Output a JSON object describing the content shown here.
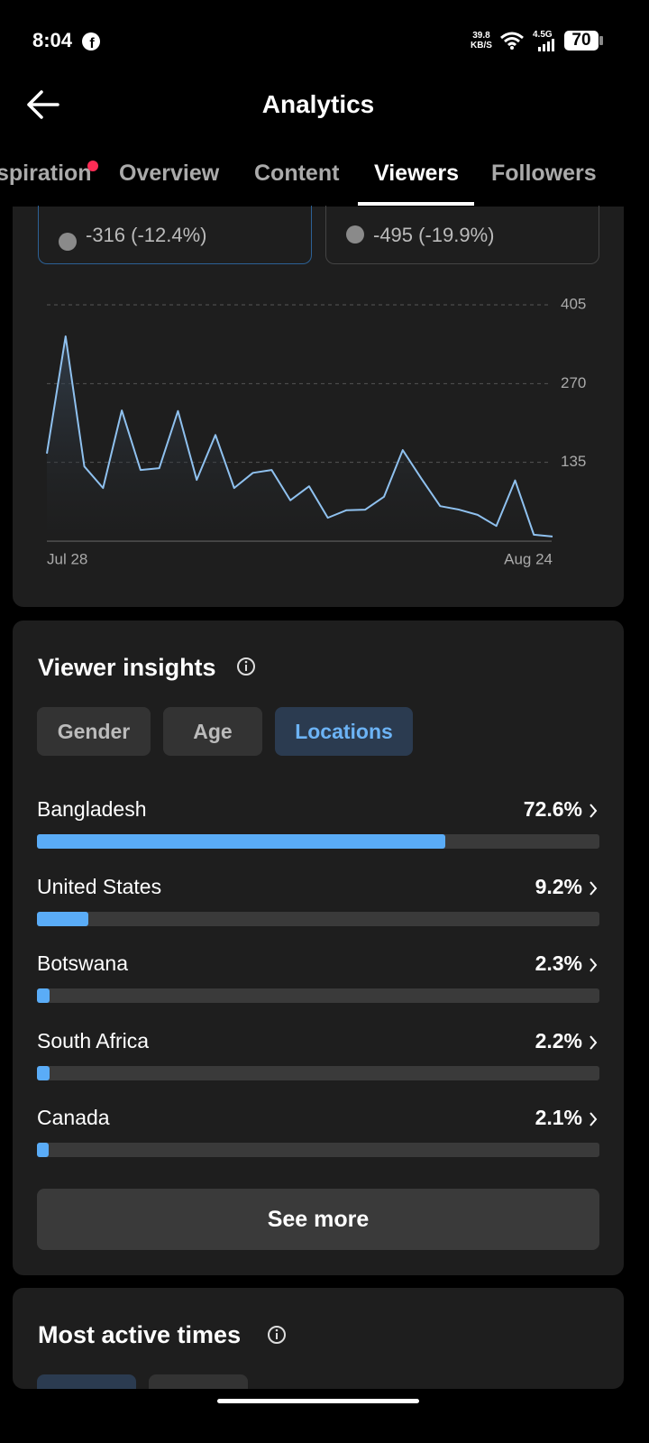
{
  "status_bar": {
    "time": "8:04",
    "speed": "39.8",
    "speed_unit": "KB/S",
    "network": "4.5G",
    "battery": "70"
  },
  "header": {
    "title": "Analytics"
  },
  "tabs": [
    "spiration",
    "Overview",
    "Content",
    "Viewers",
    "Followers"
  ],
  "stats": [
    {
      "change": "-316 (-12.4%)"
    },
    {
      "change": "-495 (-19.9%)"
    }
  ],
  "insights": {
    "title": "Viewer insights",
    "filters": [
      "Gender",
      "Age",
      "Locations"
    ],
    "button": "See more"
  },
  "next_section": {
    "title": "Most active times"
  },
  "chart_data": [
    {
      "type": "line",
      "categories": [
        "Jul 28",
        null,
        null,
        null,
        null,
        null,
        null,
        null,
        null,
        null,
        null,
        null,
        null,
        null,
        null,
        null,
        null,
        null,
        null,
        null,
        null,
        null,
        null,
        null,
        null,
        null,
        null,
        "Aug 24"
      ],
      "values": [
        150,
        351,
        128,
        91,
        224,
        122,
        125,
        223,
        105,
        182,
        91,
        117,
        122,
        70,
        94,
        40,
        53,
        54,
        76,
        156,
        107,
        60,
        54,
        45,
        26,
        104,
        11,
        8
      ],
      "color": "#8fc1ef",
      "ylim": [
        0,
        405
      ],
      "yticks": [
        135,
        270,
        405
      ],
      "grid": true
    },
    {
      "type": "hbar",
      "categories": [
        "Bangladesh",
        "United States",
        "Botswana",
        "South Africa",
        "Canada"
      ],
      "values": [
        72.6,
        9.2,
        2.3,
        2.2,
        2.1
      ],
      "value_labels": [
        "72.6%",
        "9.2%",
        "2.3%",
        "2.2%",
        "2.1%"
      ],
      "xlim": [
        0,
        100
      ],
      "color": "#5aacf7"
    }
  ]
}
